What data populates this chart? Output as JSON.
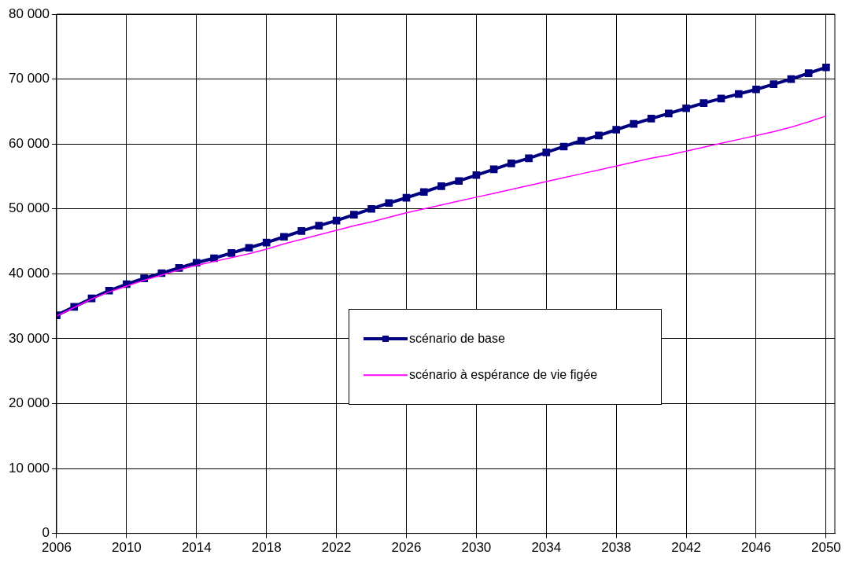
{
  "chart_data": {
    "type": "line",
    "x": [
      2006,
      2007,
      2008,
      2009,
      2010,
      2011,
      2012,
      2013,
      2014,
      2015,
      2016,
      2017,
      2018,
      2019,
      2020,
      2021,
      2022,
      2023,
      2024,
      2025,
      2026,
      2027,
      2028,
      2029,
      2030,
      2031,
      2032,
      2033,
      2034,
      2035,
      2036,
      2037,
      2038,
      2039,
      2040,
      2041,
      2042,
      2043,
      2044,
      2045,
      2046,
      2047,
      2048,
      2049,
      2050
    ],
    "series": [
      {
        "name": "scénario de base",
        "color": "#000080",
        "marker": "square",
        "values": [
          33600,
          34900,
          36200,
          37400,
          38400,
          39300,
          40100,
          40900,
          41700,
          42400,
          43200,
          44000,
          44800,
          45700,
          46600,
          47400,
          48200,
          49100,
          50000,
          50900,
          51700,
          52600,
          53500,
          54300,
          55200,
          56100,
          57000,
          57800,
          58700,
          59600,
          60500,
          61300,
          62200,
          63100,
          63900,
          64700,
          65500,
          66300,
          67000,
          67700,
          68400,
          69200,
          70000,
          70900,
          71800
        ]
      },
      {
        "name": "scénario à espérance de vie figée",
        "color": "#ff00ff",
        "marker": "none",
        "values": [
          33500,
          34800,
          36100,
          37200,
          38100,
          39000,
          39800,
          40600,
          41300,
          41900,
          42500,
          43100,
          43800,
          44600,
          45300,
          46000,
          46700,
          47400,
          48000,
          48700,
          49400,
          50000,
          50600,
          51200,
          51800,
          52400,
          53000,
          53600,
          54200,
          54800,
          55400,
          56000,
          56600,
          57200,
          57800,
          58300,
          58900,
          59500,
          60100,
          60700,
          61300,
          61900,
          62600,
          63400,
          64300
        ]
      }
    ],
    "xlim": [
      2006,
      2050.5
    ],
    "xticks": [
      2006,
      2010,
      2014,
      2018,
      2022,
      2026,
      2030,
      2034,
      2038,
      2042,
      2046,
      2050
    ],
    "ylim": [
      0,
      80000
    ],
    "yticks": [
      0,
      {
        "value": 10000,
        "label": "10 000"
      },
      {
        "value": 20000,
        "label": "20 000"
      },
      {
        "value": 30000,
        "label": "30 000"
      },
      {
        "value": 40000,
        "label": "40 000"
      },
      {
        "value": 50000,
        "label": "50 000"
      },
      {
        "value": 60000,
        "label": "60 000"
      },
      {
        "value": 70000,
        "label": "70 000"
      },
      {
        "value": 80000,
        "label": "80 000"
      }
    ],
    "grid": true,
    "legend": "center"
  }
}
